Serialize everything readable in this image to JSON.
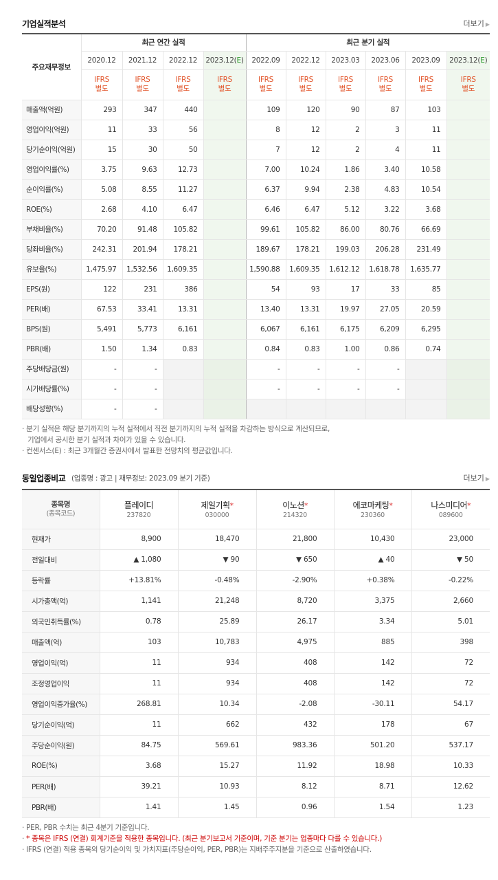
{
  "section1": {
    "title": "기업실적분석",
    "more": "더보기",
    "main_label": "주요재무정보",
    "annual_group": "최근 연간 실적",
    "quarter_group": "최근 분기 실적",
    "annual_periods": [
      "2020.12",
      "2021.12",
      "2022.12",
      "2023.12(E)"
    ],
    "quarter_periods": [
      "2022.09",
      "2022.12",
      "2023.03",
      "2023.06",
      "2023.09",
      "2023.12(E)"
    ],
    "ifrs_top": "IFRS",
    "ifrs_bottom": "별도",
    "rows": [
      {
        "label": "매출액(억원)",
        "a": [
          "293",
          "347",
          "440",
          ""
        ],
        "q": [
          "109",
          "120",
          "90",
          "87",
          "103",
          ""
        ]
      },
      {
        "label": "영업이익(억원)",
        "a": [
          "11",
          "33",
          "56",
          ""
        ],
        "q": [
          "8",
          "12",
          "2",
          "3",
          "11",
          ""
        ]
      },
      {
        "label": "당기순이익(억원)",
        "a": [
          "15",
          "30",
          "50",
          ""
        ],
        "q": [
          "7",
          "12",
          "2",
          "4",
          "11",
          ""
        ]
      },
      {
        "label": "영업이익률(%)",
        "a": [
          "3.75",
          "9.63",
          "12.73",
          ""
        ],
        "q": [
          "7.00",
          "10.24",
          "1.86",
          "3.40",
          "10.58",
          ""
        ]
      },
      {
        "label": "순이익률(%)",
        "a": [
          "5.08",
          "8.55",
          "11.27",
          ""
        ],
        "q": [
          "6.37",
          "9.94",
          "2.38",
          "4.83",
          "10.54",
          ""
        ]
      },
      {
        "label": "ROE(%)",
        "a": [
          "2.68",
          "4.10",
          "6.47",
          ""
        ],
        "q": [
          "6.46",
          "6.47",
          "5.12",
          "3.22",
          "3.68",
          ""
        ]
      },
      {
        "label": "부채비율(%)",
        "a": [
          "70.20",
          "91.48",
          "105.82",
          ""
        ],
        "q": [
          "99.61",
          "105.82",
          "86.00",
          "80.76",
          "66.69",
          ""
        ]
      },
      {
        "label": "당좌비율(%)",
        "a": [
          "242.31",
          "201.94",
          "178.21",
          ""
        ],
        "q": [
          "189.67",
          "178.21",
          "199.03",
          "206.28",
          "231.49",
          ""
        ]
      },
      {
        "label": "유보율(%)",
        "a": [
          "1,475.97",
          "1,532.56",
          "1,609.35",
          ""
        ],
        "q": [
          "1,590.88",
          "1,609.35",
          "1,612.12",
          "1,618.78",
          "1,635.77",
          ""
        ]
      },
      {
        "label": "EPS(원)",
        "a": [
          "122",
          "231",
          "386",
          ""
        ],
        "q": [
          "54",
          "93",
          "17",
          "33",
          "85",
          ""
        ]
      },
      {
        "label": "PER(배)",
        "a": [
          "67.53",
          "33.41",
          "13.31",
          ""
        ],
        "q": [
          "13.40",
          "13.31",
          "19.97",
          "27.05",
          "20.59",
          ""
        ]
      },
      {
        "label": "BPS(원)",
        "a": [
          "5,491",
          "5,773",
          "6,161",
          ""
        ],
        "q": [
          "6,067",
          "6,161",
          "6,175",
          "6,209",
          "6,295",
          ""
        ]
      },
      {
        "label": "PBR(배)",
        "a": [
          "1.50",
          "1.34",
          "0.83",
          ""
        ],
        "q": [
          "0.84",
          "0.83",
          "1.00",
          "0.86",
          "0.74",
          ""
        ]
      },
      {
        "label": "주당배당금(원)",
        "a": [
          "-",
          "-",
          "",
          ""
        ],
        "q": [
          "-",
          "-",
          "-",
          "-",
          "",
          ""
        ]
      },
      {
        "label": "시가배당률(%)",
        "a": [
          "-",
          "-",
          "",
          ""
        ],
        "q": [
          "-",
          "-",
          "-",
          "-",
          "",
          ""
        ]
      },
      {
        "label": "배당성향(%)",
        "a": [
          "-",
          "-",
          "",
          ""
        ],
        "q": [
          "",
          "",
          "",
          "",
          "",
          ""
        ]
      }
    ],
    "notes": [
      "분기 실적은 해당 분기까지의 누적 실적에서 직전 분기까지의 누적 실적을 차감하는 방식으로 계산되므로,",
      "기업에서 공시한 분기 실적과 차이가 있을 수 있습니다.",
      "컨센서스(E) : 최근 3개월간 증권사에서 발표한 전망치의 평균값입니다."
    ]
  },
  "section2": {
    "title": "동일업종비교",
    "subtitle": "(업종명 : 광고 | 재무정보: 2023.09 분기 기준)",
    "more": "더보기",
    "head_label": "종목명",
    "head_sub": "(종목코드)",
    "companies": [
      {
        "name": "플레이디",
        "code": "237820",
        "star": ""
      },
      {
        "name": "제일기획",
        "code": "030000",
        "star": "*"
      },
      {
        "name": "이노션",
        "code": "214320",
        "star": "*"
      },
      {
        "name": "에코마케팅",
        "code": "230360",
        "star": "*"
      },
      {
        "name": "나스미디어",
        "code": "089600",
        "star": "*"
      }
    ],
    "rows": [
      {
        "label": "현재가",
        "v": [
          "8,900",
          "18,470",
          "21,800",
          "10,430",
          "23,000"
        ]
      },
      {
        "label": "전일대비",
        "v": [
          "▲ 1,080",
          "▼ 90",
          "▼ 650",
          "▲ 40",
          "▼ 50"
        ],
        "dir": [
          "up",
          "down",
          "down",
          "up",
          "down"
        ]
      },
      {
        "label": "등락률",
        "v": [
          "+13.81%",
          "-0.48%",
          "-2.90%",
          "+0.38%",
          "-0.22%"
        ],
        "dir": [
          "up",
          "down",
          "down",
          "up",
          "down"
        ]
      },
      {
        "label": "시가총액(억)",
        "v": [
          "1,141",
          "21,248",
          "8,720",
          "3,375",
          "2,660"
        ]
      },
      {
        "label": "외국인취득률(%)",
        "v": [
          "0.78",
          "25.89",
          "26.17",
          "3.34",
          "5.01"
        ]
      },
      {
        "label": "매출액(억)",
        "v": [
          "103",
          "10,783",
          "4,975",
          "885",
          "398"
        ]
      },
      {
        "label": "영업이익(억)",
        "v": [
          "11",
          "934",
          "408",
          "142",
          "72"
        ]
      },
      {
        "label": "조정영업이익",
        "v": [
          "11",
          "934",
          "408",
          "142",
          "72"
        ]
      },
      {
        "label": "영업이익증가율(%)",
        "v": [
          "268.81",
          "10.34",
          "-2.08",
          "-30.11",
          "54.17"
        ]
      },
      {
        "label": "당기순이익(억)",
        "v": [
          "11",
          "662",
          "432",
          "178",
          "67"
        ]
      },
      {
        "label": "주당순이익(원)",
        "v": [
          "84.75",
          "569.61",
          "983.36",
          "501.20",
          "537.17"
        ]
      },
      {
        "label": "ROE(%)",
        "v": [
          "3.68",
          "15.27",
          "11.92",
          "18.98",
          "10.33"
        ]
      },
      {
        "label": "PER(배)",
        "v": [
          "39.21",
          "10.93",
          "8.12",
          "8.71",
          "12.62"
        ]
      },
      {
        "label": "PBR(배)",
        "v": [
          "1.41",
          "1.45",
          "0.96",
          "1.54",
          "1.23"
        ]
      }
    ],
    "notes": [
      "PER, PBR 수치는 최근 4분기 기준입니다.",
      "* 종목은 IFRS (연결) 회계기준을 적용한 종목입니다. (최근 분기보고서 기준이며, 기준 분기는 업종마다 다를 수 있습니다.)",
      "IFRS (연결) 적용 종목의 당기순이익 및 가치지표(주당순이익, PER, PBR)는 지배주주지분을 기준으로 산출하였습니다."
    ]
  },
  "colors": {
    "up": "#d11111",
    "down": "#1a4fc9",
    "estimate_bg": "#f0f7ee"
  }
}
